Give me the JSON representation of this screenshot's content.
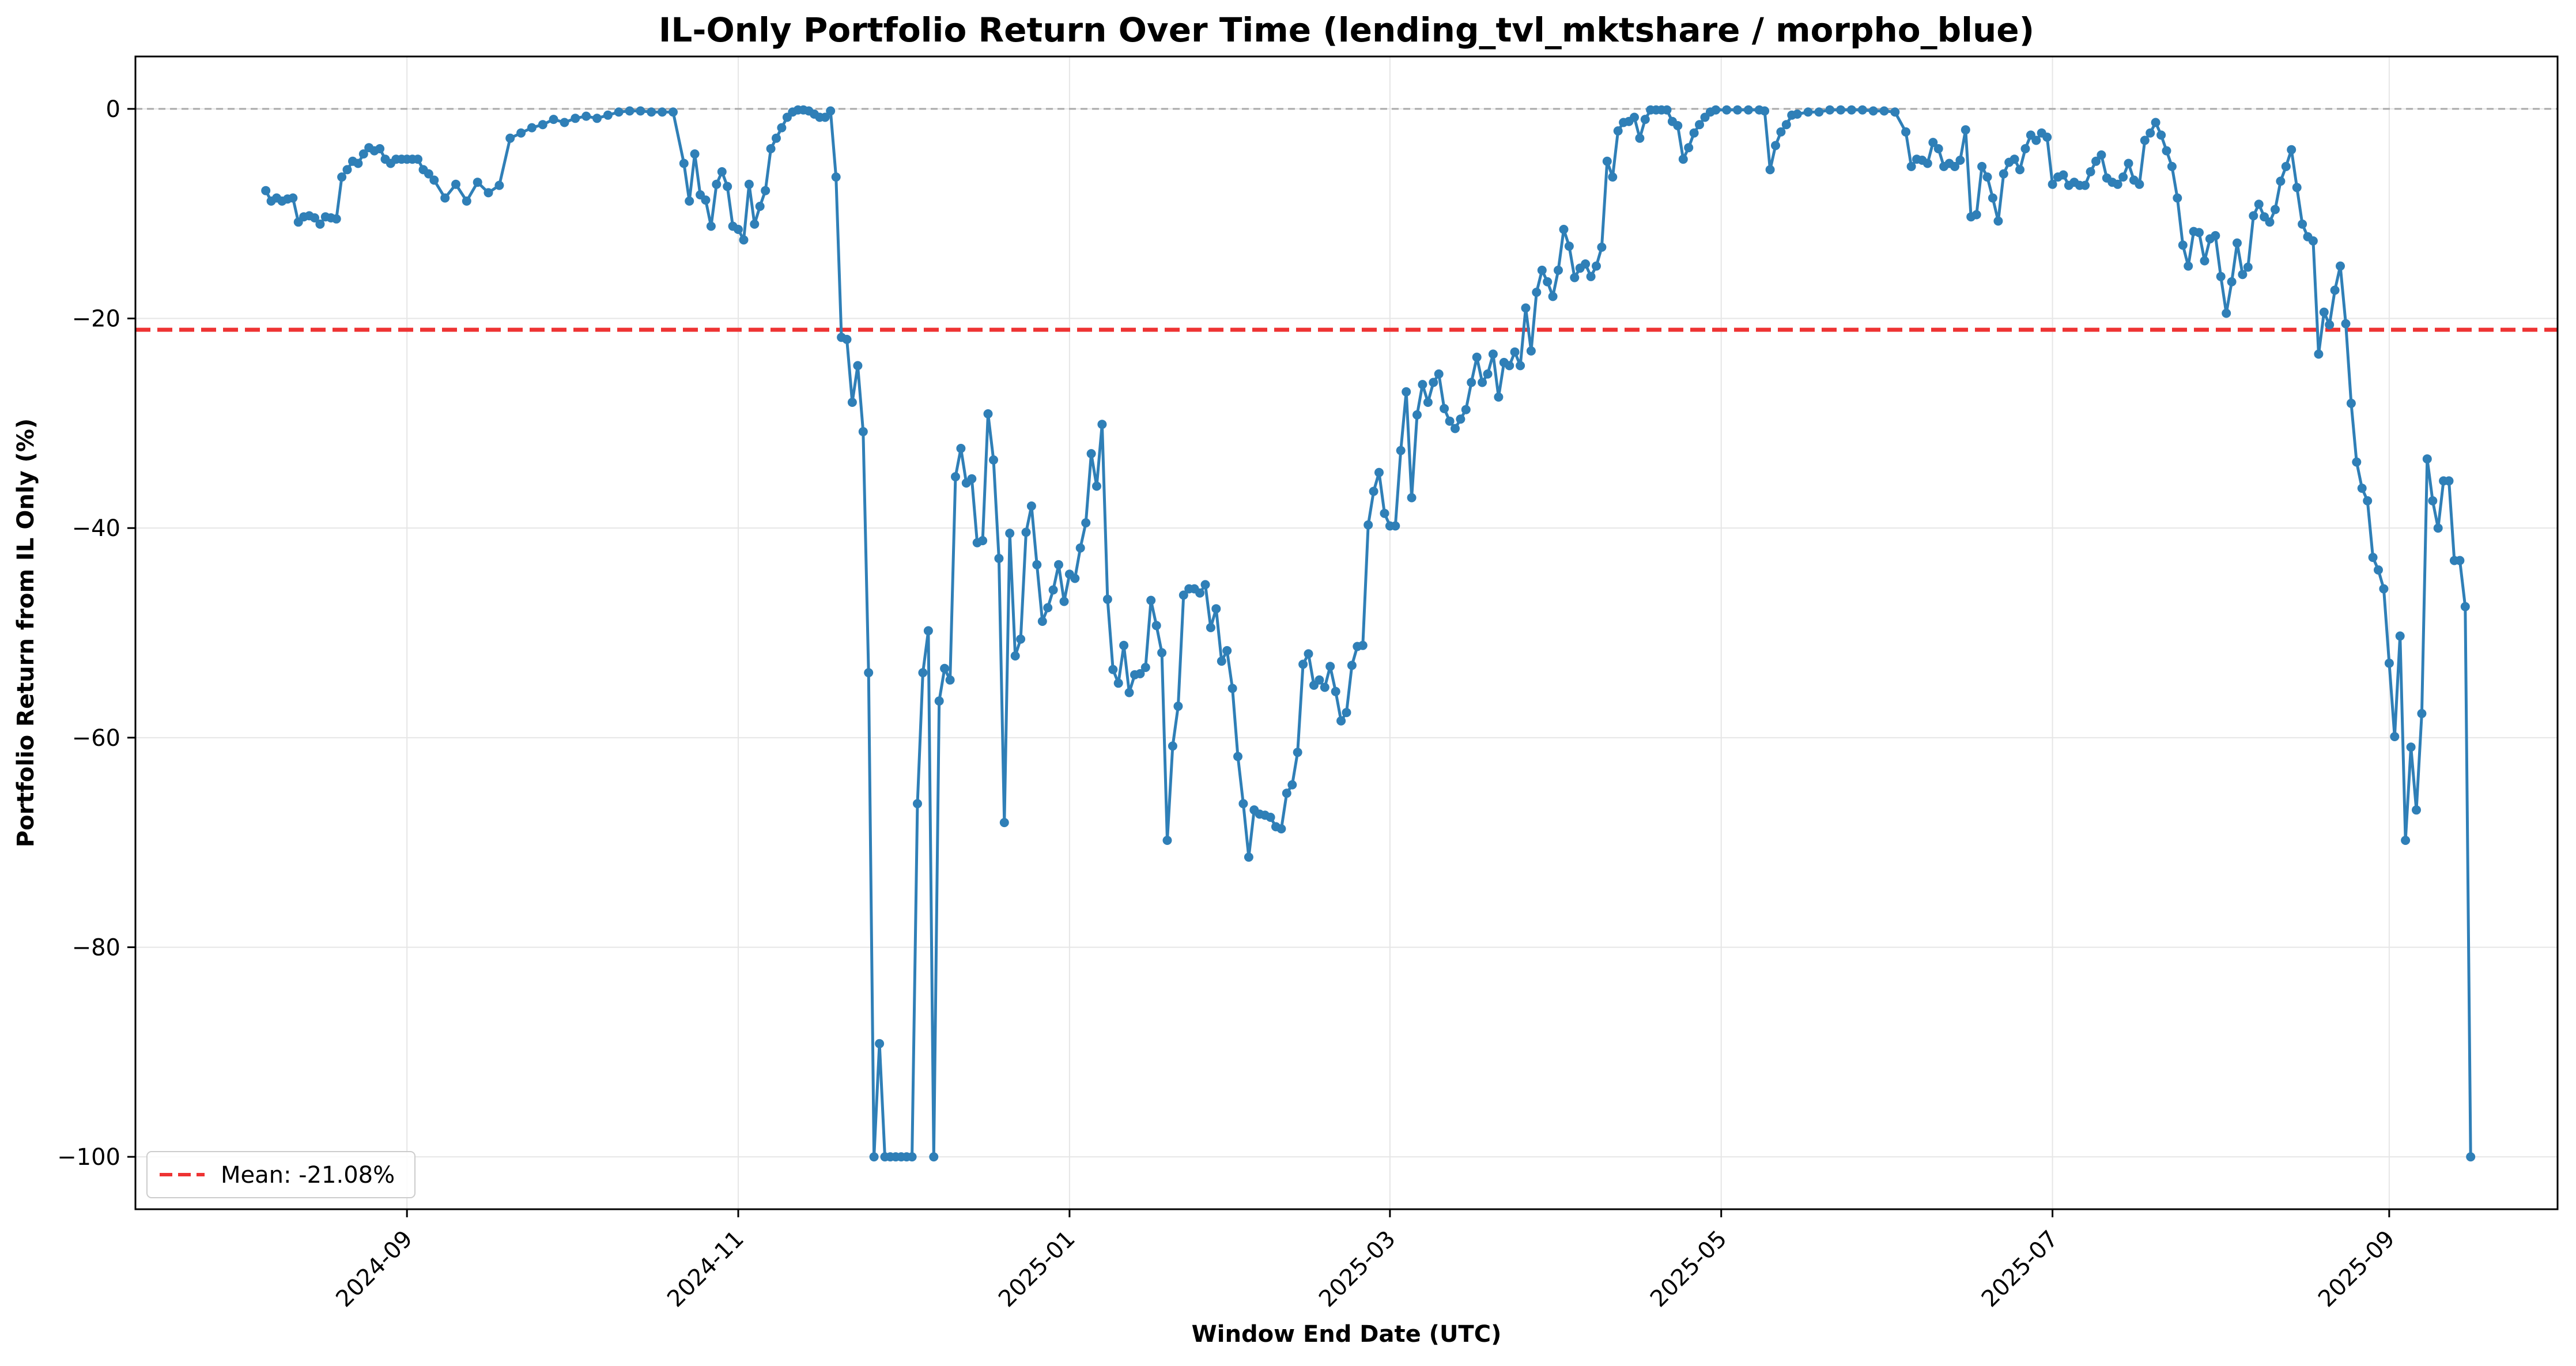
{
  "chart_data": {
    "type": "line",
    "title": "IL-Only Portfolio Return Over Time (lending_tvl_mktshare / morpho_blue)",
    "xlabel": "Window End Date (UTC)",
    "ylabel": "Portfolio Return from IL Only (%)",
    "xlim": [
      "2024-07-13",
      "2025-10-02"
    ],
    "ylim": [
      -105,
      5
    ],
    "x_ticks": [
      "2024-09-01",
      "2024-11-01",
      "2025-01-01",
      "2025-03-01",
      "2025-05-01",
      "2025-07-01",
      "2025-09-01"
    ],
    "x_tick_labels": [
      "2024-09",
      "2024-11",
      "2025-01",
      "2025-03",
      "2025-05",
      "2025-07",
      "2025-09"
    ],
    "y_ticks": [
      0,
      -20,
      -40,
      -60,
      -80,
      -100
    ],
    "y_tick_labels": [
      "0",
      "−20",
      "−40",
      "−60",
      "−80",
      "−100"
    ],
    "grid": true,
    "legend_position": "lower-left",
    "colors": {
      "series": "#2f7fb7",
      "mean_line": "#ee3333",
      "zero_line": "#aaaaaa",
      "grid": "#e6e6e6"
    },
    "mean": {
      "value": -21.08,
      "label": "Mean: -21.08%"
    },
    "series": [
      {
        "x": [
          "2024-08-06",
          "2024-08-07",
          "2024-08-08",
          "2024-08-09",
          "2024-08-10",
          "2024-08-11",
          "2024-08-12",
          "2024-08-13",
          "2024-08-14",
          "2024-08-15",
          "2024-08-16",
          "2024-08-17",
          "2024-08-18",
          "2024-08-19",
          "2024-08-20",
          "2024-08-21",
          "2024-08-22",
          "2024-08-23",
          "2024-08-24",
          "2024-08-25",
          "2024-08-26",
          "2024-08-27",
          "2024-08-28",
          "2024-08-29",
          "2024-08-30",
          "2024-08-31",
          "2024-09-01",
          "2024-09-02",
          "2024-09-03",
          "2024-09-04",
          "2024-09-05",
          "2024-09-06",
          "2024-09-08",
          "2024-09-10",
          "2024-09-12",
          "2024-09-14",
          "2024-09-16",
          "2024-09-18",
          "2024-09-20",
          "2024-09-22",
          "2024-09-24",
          "2024-09-26",
          "2024-09-28",
          "2024-09-30",
          "2024-10-02",
          "2024-10-04",
          "2024-10-06",
          "2024-10-08",
          "2024-10-10",
          "2024-10-12",
          "2024-10-14",
          "2024-10-16",
          "2024-10-18",
          "2024-10-20",
          "2024-10-22",
          "2024-10-23",
          "2024-10-24",
          "2024-10-25",
          "2024-10-26",
          "2024-10-27",
          "2024-10-28",
          "2024-10-29",
          "2024-10-30",
          "2024-10-31",
          "2024-11-01",
          "2024-11-02",
          "2024-11-03",
          "2024-11-04",
          "2024-11-05",
          "2024-11-06",
          "2024-11-07",
          "2024-11-08",
          "2024-11-09",
          "2024-11-10",
          "2024-11-11",
          "2024-11-12",
          "2024-11-13",
          "2024-11-14",
          "2024-11-15",
          "2024-11-16",
          "2024-11-17",
          "2024-11-18",
          "2024-11-19",
          "2024-11-20",
          "2024-11-21",
          "2024-11-22",
          "2024-11-23",
          "2024-11-24",
          "2024-11-25",
          "2024-11-26",
          "2024-11-27",
          "2024-11-28",
          "2024-11-29",
          "2024-11-30",
          "2024-12-01",
          "2024-12-02",
          "2024-12-03",
          "2024-12-04",
          "2024-12-05",
          "2024-12-06",
          "2024-12-07",
          "2024-12-08",
          "2024-12-09",
          "2024-12-10",
          "2024-12-11",
          "2024-12-12",
          "2024-12-13",
          "2024-12-14",
          "2024-12-15",
          "2024-12-16",
          "2024-12-17",
          "2024-12-18",
          "2024-12-19",
          "2024-12-20",
          "2024-12-21",
          "2024-12-22",
          "2024-12-23",
          "2024-12-24",
          "2024-12-25",
          "2024-12-26",
          "2024-12-27",
          "2024-12-28",
          "2024-12-29",
          "2024-12-30",
          "2024-12-31",
          "2025-01-01",
          "2025-01-02",
          "2025-01-03",
          "2025-01-04",
          "2025-01-05",
          "2025-01-06",
          "2025-01-07",
          "2025-01-08",
          "2025-01-09",
          "2025-01-10",
          "2025-01-11",
          "2025-01-12",
          "2025-01-13",
          "2025-01-14",
          "2025-01-15",
          "2025-01-16",
          "2025-01-17",
          "2025-01-18",
          "2025-01-19",
          "2025-01-20",
          "2025-01-21",
          "2025-01-22",
          "2025-01-23",
          "2025-01-24",
          "2025-01-25",
          "2025-01-26",
          "2025-01-27",
          "2025-01-28",
          "2025-01-29",
          "2025-01-30",
          "2025-01-31",
          "2025-02-01",
          "2025-02-02",
          "2025-02-03",
          "2025-02-04",
          "2025-02-05",
          "2025-02-06",
          "2025-02-07",
          "2025-02-08",
          "2025-02-09",
          "2025-02-10",
          "2025-02-11",
          "2025-02-12",
          "2025-02-13",
          "2025-02-14",
          "2025-02-15",
          "2025-02-16",
          "2025-02-17",
          "2025-02-18",
          "2025-02-19",
          "2025-02-20",
          "2025-02-21",
          "2025-02-22",
          "2025-02-23",
          "2025-02-24",
          "2025-02-25",
          "2025-02-26",
          "2025-02-27",
          "2025-02-28",
          "2025-03-01",
          "2025-03-02",
          "2025-03-03",
          "2025-03-04",
          "2025-03-05",
          "2025-03-06",
          "2025-03-07",
          "2025-03-08",
          "2025-03-09",
          "2025-03-10",
          "2025-03-11",
          "2025-03-12",
          "2025-03-13",
          "2025-03-14",
          "2025-03-15",
          "2025-03-16",
          "2025-03-17",
          "2025-03-18",
          "2025-03-19",
          "2025-03-20",
          "2025-03-21",
          "2025-03-22",
          "2025-03-23",
          "2025-03-24",
          "2025-03-25",
          "2025-03-26",
          "2025-03-27",
          "2025-03-28",
          "2025-03-29",
          "2025-03-30",
          "2025-03-31",
          "2025-04-01",
          "2025-04-02",
          "2025-04-03",
          "2025-04-04",
          "2025-04-05",
          "2025-04-06",
          "2025-04-07",
          "2025-04-08",
          "2025-04-09",
          "2025-04-10",
          "2025-04-11",
          "2025-04-12",
          "2025-04-13",
          "2025-04-14",
          "2025-04-15",
          "2025-04-16",
          "2025-04-17",
          "2025-04-18",
          "2025-04-19",
          "2025-04-20",
          "2025-04-21",
          "2025-04-22",
          "2025-04-23",
          "2025-04-24",
          "2025-04-25",
          "2025-04-26",
          "2025-04-27",
          "2025-04-28",
          "2025-04-29",
          "2025-04-30",
          "2025-05-02",
          "2025-05-04",
          "2025-05-06",
          "2025-05-08",
          "2025-05-09",
          "2025-05-10",
          "2025-05-11",
          "2025-05-12",
          "2025-05-13",
          "2025-05-14",
          "2025-05-15",
          "2025-05-17",
          "2025-05-19",
          "2025-05-21",
          "2025-05-23",
          "2025-05-25",
          "2025-05-27",
          "2025-05-29",
          "2025-05-31",
          "2025-06-02",
          "2025-06-04",
          "2025-06-05",
          "2025-06-06",
          "2025-06-07",
          "2025-06-08",
          "2025-06-09",
          "2025-06-10",
          "2025-06-11",
          "2025-06-12",
          "2025-06-13",
          "2025-06-14",
          "2025-06-15",
          "2025-06-16",
          "2025-06-17",
          "2025-06-18",
          "2025-06-19",
          "2025-06-20",
          "2025-06-21",
          "2025-06-22",
          "2025-06-23",
          "2025-06-24",
          "2025-06-25",
          "2025-06-26",
          "2025-06-27",
          "2025-06-28",
          "2025-06-29",
          "2025-06-30",
          "2025-07-01",
          "2025-07-02",
          "2025-07-03",
          "2025-07-04",
          "2025-07-05",
          "2025-07-06",
          "2025-07-07",
          "2025-07-08",
          "2025-07-09",
          "2025-07-10",
          "2025-07-11",
          "2025-07-12",
          "2025-07-13",
          "2025-07-14",
          "2025-07-15",
          "2025-07-16",
          "2025-07-17",
          "2025-07-18",
          "2025-07-19",
          "2025-07-20",
          "2025-07-21",
          "2025-07-22",
          "2025-07-23",
          "2025-07-24",
          "2025-07-25",
          "2025-07-26",
          "2025-07-27",
          "2025-07-28",
          "2025-07-29",
          "2025-07-30",
          "2025-07-31",
          "2025-08-01",
          "2025-08-02",
          "2025-08-03",
          "2025-08-04",
          "2025-08-05",
          "2025-08-06",
          "2025-08-07",
          "2025-08-08",
          "2025-08-09",
          "2025-08-10",
          "2025-08-11",
          "2025-08-12",
          "2025-08-13",
          "2025-08-14",
          "2025-08-15",
          "2025-08-16",
          "2025-08-17",
          "2025-08-18",
          "2025-08-19",
          "2025-08-20",
          "2025-08-21",
          "2025-08-22",
          "2025-08-23",
          "2025-08-24",
          "2025-08-25",
          "2025-08-26",
          "2025-08-27",
          "2025-08-28",
          "2025-08-29",
          "2025-08-30",
          "2025-08-31",
          "2025-09-01",
          "2025-09-02",
          "2025-09-03",
          "2025-09-04",
          "2025-09-05",
          "2025-09-06",
          "2025-09-07",
          "2025-09-08",
          "2025-09-09",
          "2025-09-10",
          "2025-09-11",
          "2025-09-12",
          "2025-09-13",
          "2025-09-14",
          "2025-09-15",
          "2025-09-16"
        ],
        "values": [
          -7.8,
          -8.8,
          -8.5,
          -8.8,
          -8.6,
          -8.5,
          -10.8,
          -10.3,
          -10.2,
          -10.4,
          -11.0,
          -10.3,
          -10.4,
          -10.5,
          -6.5,
          -5.8,
          -5.0,
          -5.2,
          -4.3,
          -3.7,
          -4.0,
          -3.8,
          -4.8,
          -5.2,
          -4.8,
          -4.8,
          -4.8,
          -4.8,
          -4.8,
          -5.8,
          -6.2,
          -6.8,
          -8.5,
          -7.2,
          -8.8,
          -7.0,
          -8.0,
          -7.3,
          -2.8,
          -2.3,
          -1.8,
          -1.5,
          -1.0,
          -1.3,
          -0.9,
          -0.7,
          -0.9,
          -0.6,
          -0.3,
          -0.2,
          -0.2,
          -0.3,
          -0.3,
          -0.3,
          -5.2,
          -8.8,
          -4.3,
          -8.2,
          -8.7,
          -11.2,
          -7.2,
          -6.0,
          -7.4,
          -11.2,
          -11.5,
          -12.5,
          -7.2,
          -11.0,
          -9.3,
          -7.8,
          -3.8,
          -2.8,
          -1.8,
          -0.8,
          -0.3,
          -0.1,
          -0.1,
          -0.2,
          -0.5,
          -0.8,
          -0.8,
          -0.2,
          -6.5,
          -21.8,
          -22.0,
          -28.0,
          -24.5,
          -30.8,
          -53.8,
          -100.0,
          -89.2,
          -100.0,
          -100.0,
          -100.0,
          -100.0,
          -100.0,
          -100.0,
          -66.3,
          -53.8,
          -49.8,
          -100.0,
          -56.5,
          -53.4,
          -54.5,
          -35.1,
          -32.4,
          -35.7,
          -35.3,
          -41.4,
          -41.2,
          -29.1,
          -33.5,
          -42.9,
          -68.1,
          -40.5,
          -52.2,
          -50.6,
          -40.4,
          -37.9,
          -43.5,
          -48.9,
          -47.6,
          -45.9,
          -43.5,
          -47.0,
          -44.4,
          -44.8,
          -41.9,
          -39.5,
          -32.9,
          -36.0,
          -30.1,
          -46.8,
          -53.5,
          -54.8,
          -51.2,
          -55.7,
          -54.0,
          -53.9,
          -53.3,
          -46.9,
          -49.3,
          -51.9,
          -69.8,
          -60.8,
          -57.0,
          -46.4,
          -45.8,
          -45.8,
          -46.2,
          -45.4,
          -49.5,
          -47.7,
          -52.7,
          -51.7,
          -55.3,
          -61.8,
          -66.3,
          -71.4,
          -66.9,
          -67.3,
          -67.4,
          -67.6,
          -68.5,
          -68.7,
          -65.3,
          -64.5,
          -61.4,
          -53.0,
          -52.0,
          -55.0,
          -54.5,
          -55.2,
          -53.2,
          -55.6,
          -58.4,
          -57.6,
          -53.1,
          -51.3,
          -51.2,
          -39.7,
          -36.5,
          -34.7,
          -38.6,
          -39.8,
          -39.8,
          -32.6,
          -27.0,
          -37.1,
          -29.2,
          -26.3,
          -28.0,
          -26.1,
          -25.3,
          -28.6,
          -29.8,
          -30.5,
          -29.6,
          -28.7,
          -26.1,
          -23.7,
          -26.1,
          -25.3,
          -23.4,
          -27.5,
          -24.2,
          -24.5,
          -23.2,
          -24.5,
          -19.0,
          -23.1,
          -17.5,
          -15.4,
          -16.5,
          -17.9,
          -15.4,
          -11.5,
          -13.1,
          -16.1,
          -15.2,
          -14.8,
          -16.0,
          -15.0,
          -13.2,
          -5.0,
          -6.5,
          -2.1,
          -1.3,
          -1.2,
          -0.8,
          -2.8,
          -1.0,
          -0.1,
          -0.1,
          -0.1,
          -0.1,
          -1.2,
          -1.6,
          -4.8,
          -3.7,
          -2.3,
          -1.5,
          -0.8,
          -0.3,
          -0.1,
          -0.1,
          -0.1,
          -0.1,
          -0.1,
          -0.2,
          -5.8,
          -3.5,
          -2.2,
          -1.5,
          -0.6,
          -0.5,
          -0.3,
          -0.3,
          -0.1,
          -0.1,
          -0.1,
          -0.1,
          -0.2,
          -0.2,
          -0.3,
          -2.2,
          -5.5,
          -4.8,
          -4.9,
          -5.2,
          -3.2,
          -3.8,
          -5.5,
          -5.2,
          -5.5,
          -4.9,
          -2.0,
          -10.3,
          -10.1,
          -5.5,
          -6.5,
          -8.5,
          -10.7,
          -6.2,
          -5.1,
          -4.8,
          -5.8,
          -3.8,
          -2.5,
          -3.0,
          -2.3,
          -2.7,
          -7.2,
          -6.5,
          -6.3,
          -7.3,
          -7.0,
          -7.3,
          -7.3,
          -6.0,
          -5.0,
          -4.4,
          -6.6,
          -7.0,
          -7.2,
          -6.5,
          -5.2,
          -6.8,
          -7.2,
          -3.0,
          -2.3,
          -1.3,
          -2.5,
          -4.0,
          -5.5,
          -8.5,
          -13.0,
          -15.0,
          -11.7,
          -11.8,
          -14.5,
          -12.4,
          -12.1,
          -16.0,
          -19.5,
          -16.5,
          -12.8,
          -15.8,
          -15.1,
          -10.2,
          -9.1,
          -10.3,
          -10.8,
          -9.6,
          -6.9,
          -5.5,
          -3.9,
          -7.5,
          -11.0,
          -12.2,
          -12.6,
          -23.4,
          -19.4,
          -20.6,
          -17.3,
          -15.0,
          -20.5,
          -28.1,
          -33.7,
          -36.2,
          -37.4,
          -42.8,
          -44.0,
          -45.8,
          -52.9,
          -59.9,
          -50.3,
          -69.8,
          -60.9,
          -66.9,
          -57.7,
          -33.4,
          -37.4,
          -40.0,
          -35.5,
          -35.5,
          -43.1,
          -43.1,
          -47.5,
          -100.0
        ]
      }
    ]
  }
}
